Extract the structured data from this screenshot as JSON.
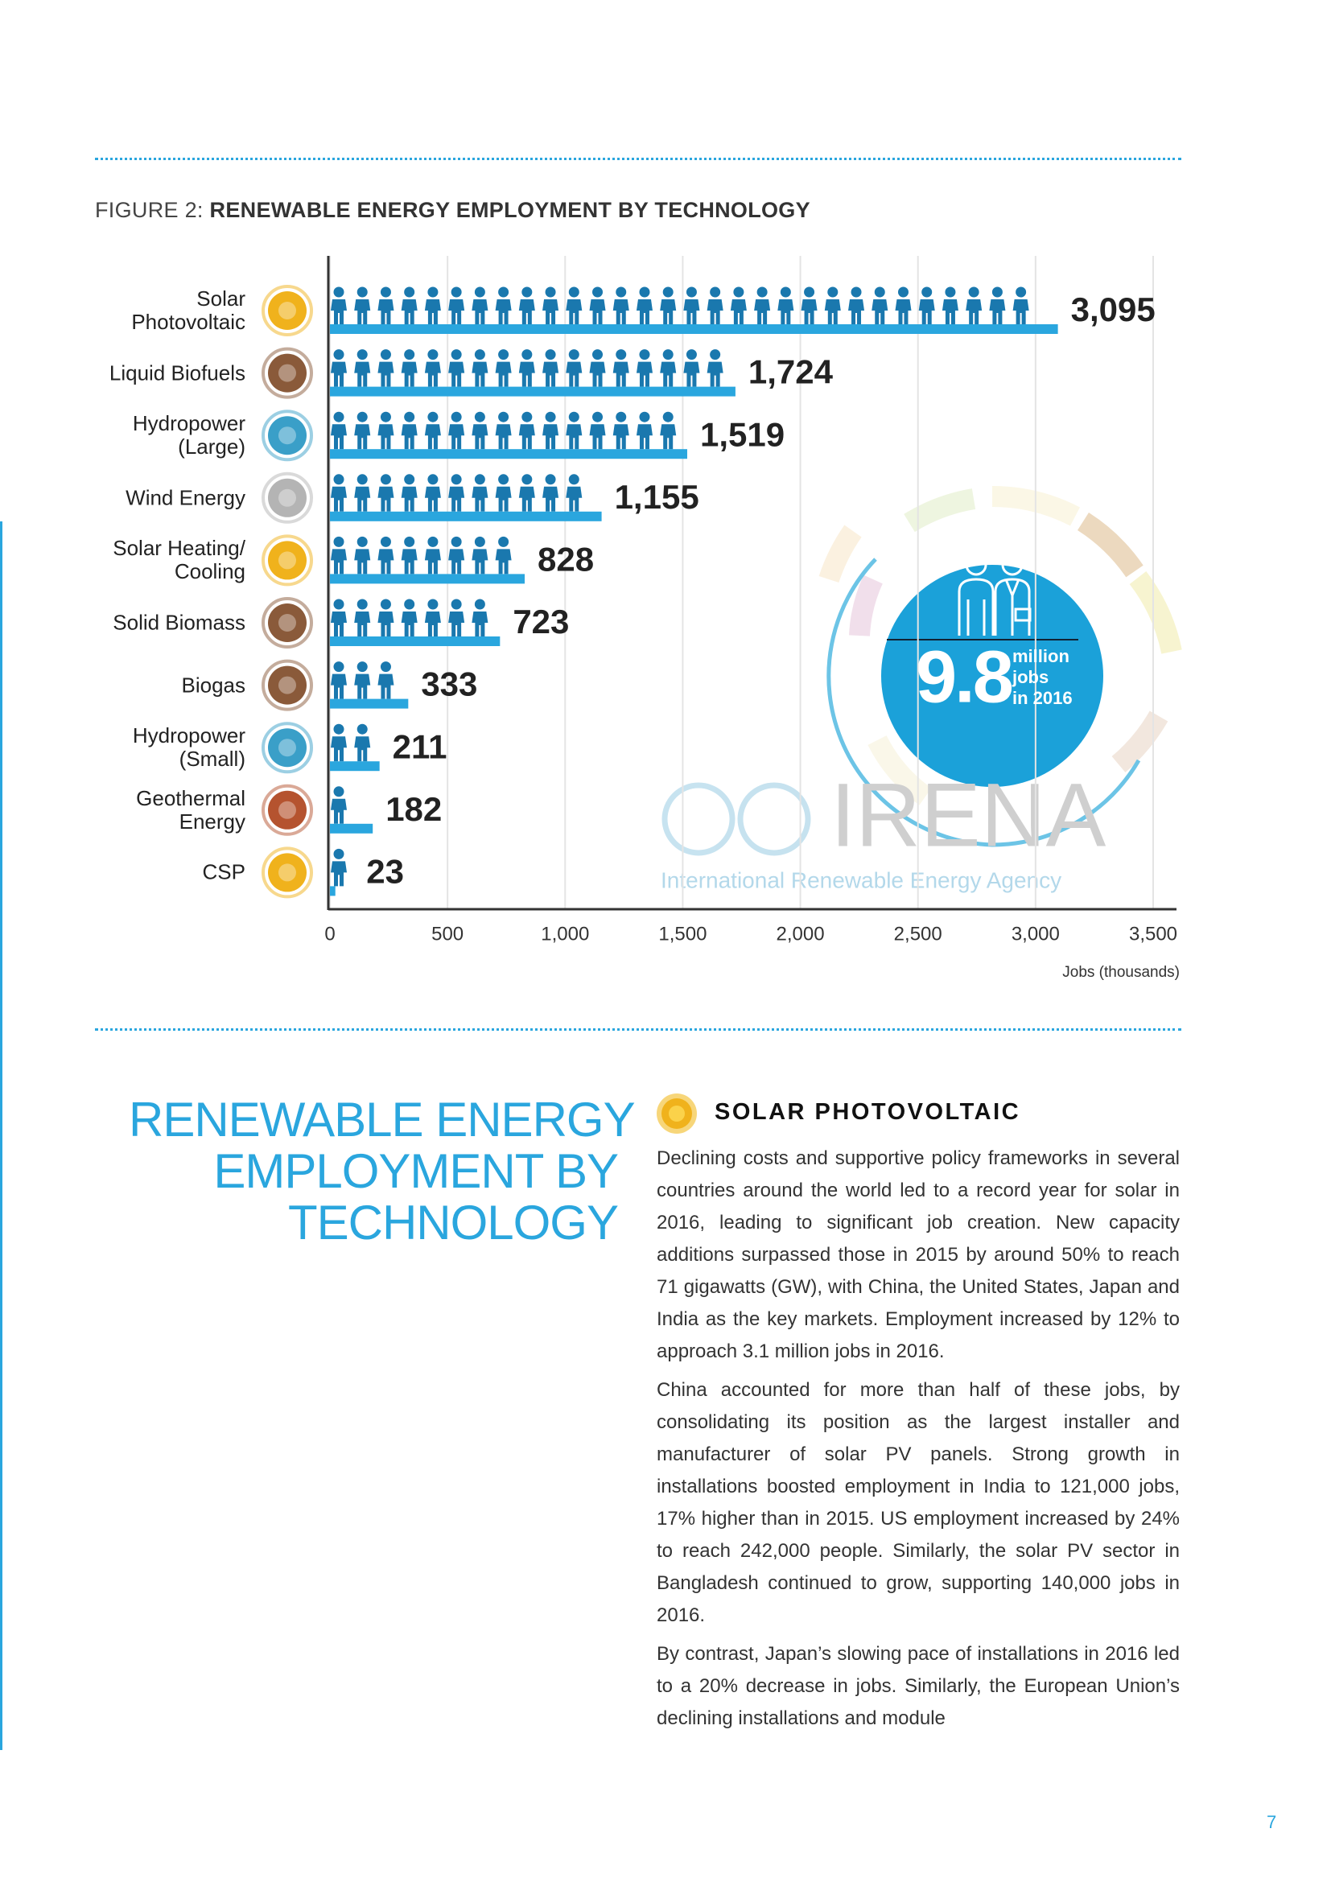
{
  "chart_data": {
    "type": "bar",
    "orientation": "horizontal",
    "figure_label": "FIGURE 2:",
    "title": "RENEWABLE ENERGY EMPLOYMENT BY TECHNOLOGY",
    "categories": [
      "Solar\nPhotovoltaic",
      "Liquid Biofuels",
      "Hydropower\n(Large)",
      "Wind Energy",
      "Solar Heating/\nCooling",
      "Solid Biomass",
      "Biogas",
      "Hydropower\n(Small)",
      "Geothermal\nEnergy",
      "CSP"
    ],
    "values": [
      3095,
      1724,
      1519,
      1155,
      828,
      723,
      333,
      211,
      182,
      23
    ],
    "value_labels": [
      "3,095",
      "1,724",
      "1,519",
      "1,155",
      "828",
      "723",
      "333",
      "211",
      "182",
      "23"
    ],
    "xlim": [
      0,
      3500
    ],
    "xticks": [
      0,
      500,
      {
        "value": 1000,
        "label": "1,000"
      },
      {
        "value": 1500,
        "label": "1,500"
      },
      {
        "value": 2000,
        "label": "2,000"
      },
      {
        "value": 2500,
        "label": "2,500"
      },
      {
        "value": 3000,
        "label": "3,000"
      },
      {
        "value": 3500,
        "label": "3,500"
      }
    ],
    "xlabel": "Jobs (thousands)",
    "grid": true,
    "color": "#2aa6de",
    "icon_color": "#1a78ae",
    "category_icon_colors": [
      "#f0b21c",
      "#8a5a3a",
      "#3a9fc8",
      "#b4b4b4",
      "#f0b21c",
      "#8a5a3a",
      "#8a5a3a",
      "#3a9fc8",
      "#b5532f",
      "#f0b21c"
    ],
    "annotations": {
      "total": "9.8",
      "total_text": "million\njobs\nin 2016",
      "logo": "IRENA",
      "logo_subtitle": "International Renewable Energy Agency"
    }
  },
  "section": {
    "heading": [
      "RENEWABLE ENERGY",
      "EMPLOYMENT BY",
      "TECHNOLOGY"
    ],
    "subheading": "SOLAR PHOTOVOLTAIC",
    "paragraphs": [
      "Declining costs and supportive policy frameworks in several countries around the world led to a record year for solar in 2016, leading to significant job creation. New capacity additions surpassed those in 2015 by around 50% to reach 71 gigawatts (GW), with China, the United States, Japan and India as the key markets. Employment increased by 12% to approach 3.1 million jobs in 2016.",
      "China accounted for more than half of these jobs, by consolidating its position as the largest installer and manufacturer of solar PV panels. Strong growth in installations boosted employment in India to 121,000 jobs, 17% higher than in 2015. US employment increased by 24% to reach 242,000 people. Similarly, the solar PV sector in Bangladesh continued to grow, supporting 140,000 jobs in 2016.",
      "By contrast, Japan’s slowing pace of installations in 2016 led to a 20% decrease in jobs. Similarly, the European Union’s declining installations and module"
    ]
  },
  "page_number": 7
}
